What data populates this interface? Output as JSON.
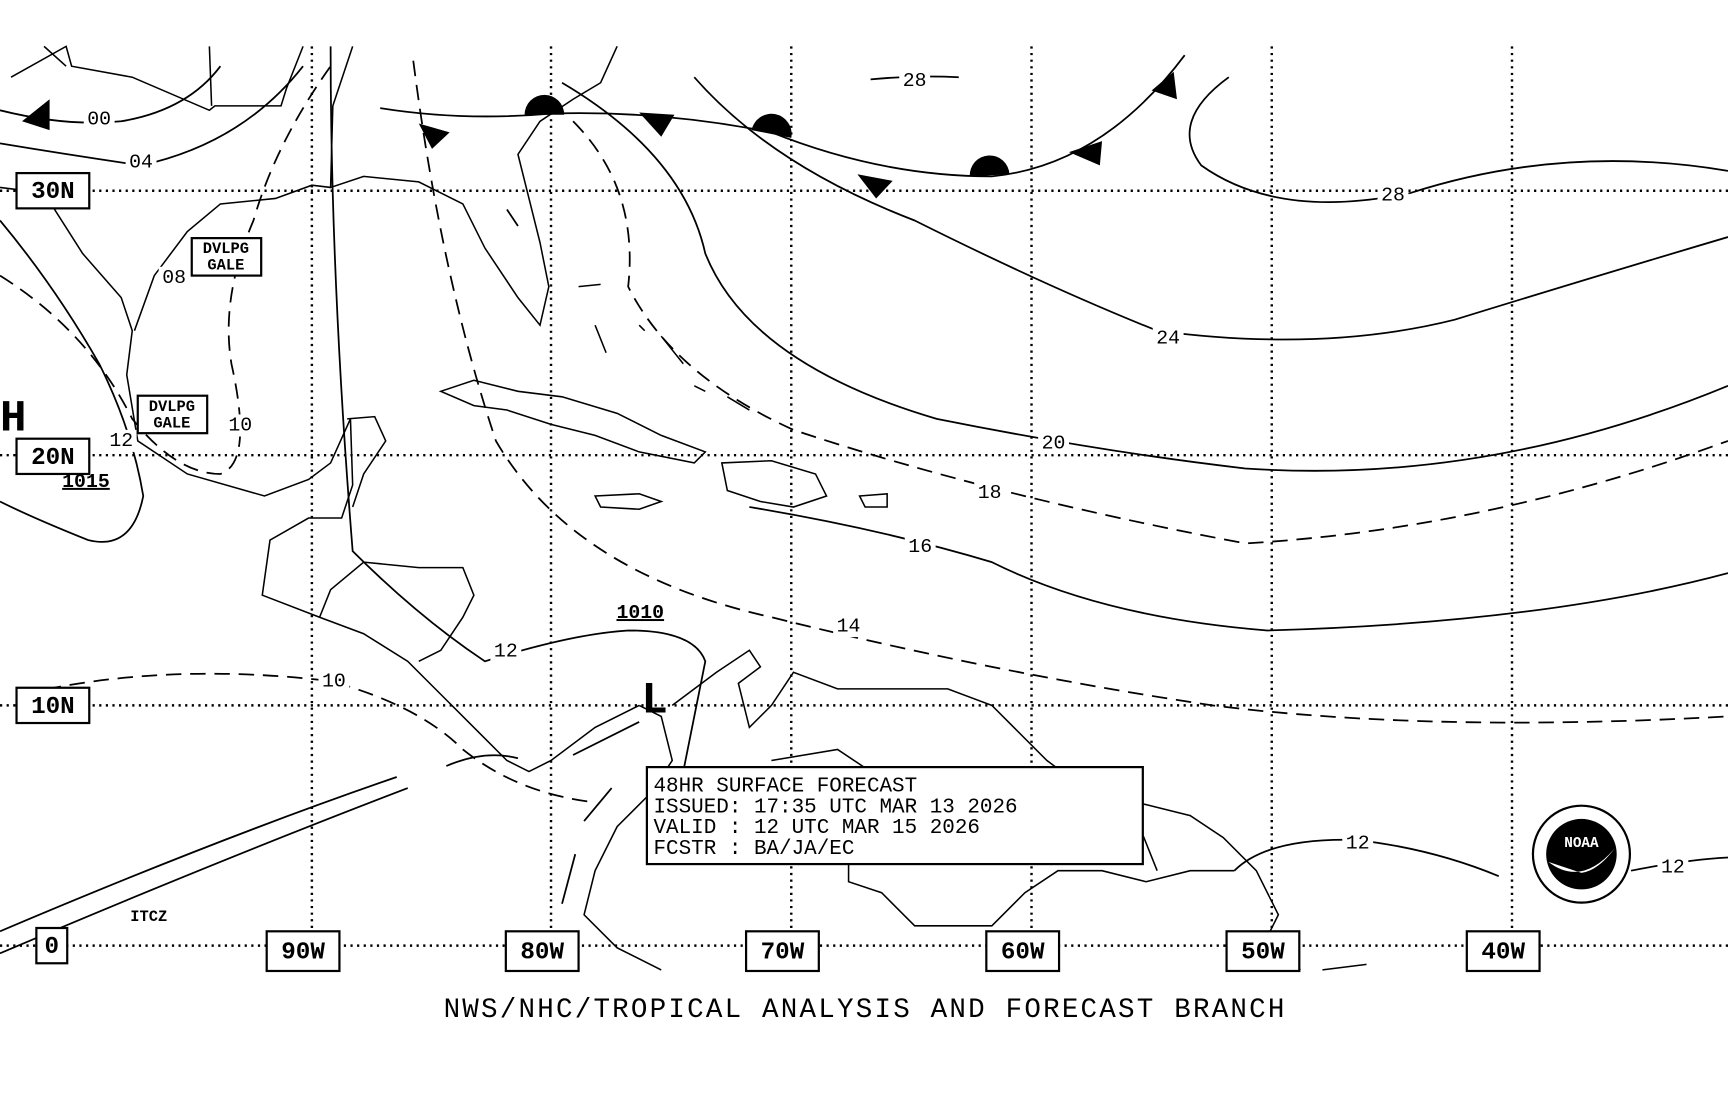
{
  "map": {
    "latitude_labels": [
      "30N",
      "20N",
      "10N",
      "0"
    ],
    "longitude_labels": [
      "90W",
      "80W",
      "70W",
      "60W",
      "50W",
      "40W"
    ],
    "isobar_labels": [
      "00",
      "04",
      "08",
      "10",
      "12",
      "12",
      "10",
      "14",
      "16",
      "18",
      "20",
      "24",
      "28",
      "28",
      "12",
      "12"
    ],
    "pressure_centers": [
      {
        "symbol": "H",
        "value": "1015"
      },
      {
        "symbol": "L",
        "value": "1010"
      }
    ],
    "warnings": [
      {
        "line1": "DVLPG",
        "line2": "GALE"
      },
      {
        "line1": "DVLPG",
        "line2": "GALE"
      }
    ],
    "feature_label": "ITCZ",
    "info_box": [
      "48HR SURFACE FORECAST",
      "ISSUED: 17:35 UTC MAR 13 2026",
      "VALID : 12 UTC MAR 15 2026",
      "FCSTR : BA/JA/EC"
    ],
    "footer": "NWS/NHC/TROPICAL ANALYSIS AND FORECAST BRANCH",
    "logo": "NOAA"
  }
}
